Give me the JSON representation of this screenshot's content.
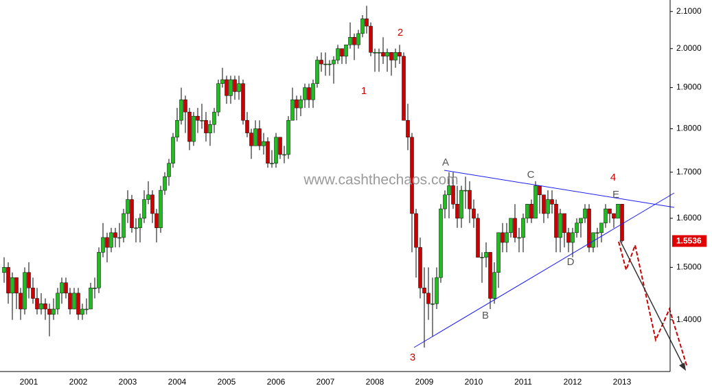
{
  "chart_data": {
    "type": "candlestick",
    "log_scale": true,
    "up_color": "#22bb22",
    "down_color": "#cc0000",
    "ylim": [
      1.308,
      2.132
    ],
    "yticks": [
      {
        "value": 1.4,
        "label": "1.4000"
      },
      {
        "value": 1.5,
        "label": "1.5000"
      },
      {
        "value": 1.6,
        "label": "1.6000"
      },
      {
        "value": 1.7,
        "label": "1.7000"
      },
      {
        "value": 1.8,
        "label": "1.8000"
      },
      {
        "value": 1.9,
        "label": "1.9000"
      },
      {
        "value": 2.0,
        "label": "2.0000"
      },
      {
        "value": 2.1,
        "label": "2.1000"
      }
    ],
    "watermark": "www.cashthechaos.com",
    "annotations": [
      "1",
      "2",
      "3",
      "4",
      "A",
      "B",
      "C",
      "D",
      "E"
    ],
    "categories": [
      null,
      null,
      null,
      null,
      null,
      null,
      "2001",
      null,
      null,
      null,
      null,
      null,
      null,
      null,
      null,
      null,
      null,
      null,
      "2002",
      null,
      null,
      null,
      null,
      null,
      null,
      null,
      null,
      null,
      null,
      null,
      "2003",
      null,
      null,
      null,
      null,
      null,
      null,
      null,
      null,
      null,
      null,
      null,
      "2004",
      null,
      null,
      null,
      null,
      null,
      null,
      null,
      null,
      null,
      null,
      null,
      "2005",
      null,
      null,
      null,
      null,
      null,
      null,
      null,
      null,
      null,
      null,
      null,
      "2006",
      null,
      null,
      null,
      null,
      null,
      null,
      null,
      null,
      null,
      null,
      null,
      "2007",
      null,
      null,
      null,
      null,
      null,
      null,
      null,
      null,
      null,
      null,
      null,
      "2008",
      null,
      null,
      null,
      null,
      null,
      null,
      null,
      null,
      null,
      null,
      null,
      "2009",
      null,
      null,
      null,
      null,
      null,
      null,
      null,
      null,
      null,
      null,
      null,
      "2010",
      null,
      null,
      null,
      null,
      null,
      null,
      null,
      null,
      null,
      null,
      null,
      "2011",
      null,
      null,
      null,
      null,
      null,
      null,
      null,
      null,
      null,
      null,
      null,
      "2012",
      null,
      null,
      null,
      null,
      null,
      null,
      null,
      null,
      null,
      null,
      null,
      "2013"
    ],
    "open": [
      1.49,
      1.5,
      1.45,
      1.48,
      1.45,
      1.42,
      1.49,
      1.46,
      1.44,
      1.42,
      1.43,
      1.42,
      1.41,
      1.42,
      1.45,
      1.47,
      1.45,
      1.42,
      1.45,
      1.41,
      1.42,
      1.42,
      1.46,
      1.46,
      1.53,
      1.56,
      1.54,
      1.57,
      1.56,
      1.56,
      1.61,
      1.64,
      1.58,
      1.58,
      1.6,
      1.64,
      1.65,
      1.61,
      1.58,
      1.66,
      1.69,
      1.72,
      1.78,
      1.82,
      1.87,
      1.84,
      1.77,
      1.83,
      1.82,
      1.82,
      1.79,
      1.81,
      1.84,
      1.91,
      1.92,
      1.88,
      1.92,
      1.89,
      1.91,
      1.82,
      1.79,
      1.76,
      1.8,
      1.76,
      1.77,
      1.72,
      1.72,
      1.78,
      1.74,
      1.74,
      1.82,
      1.87,
      1.85,
      1.87,
      1.9,
      1.87,
      1.91,
      1.97,
      1.96,
      1.96,
      1.96,
      1.97,
      2.0,
      1.98,
      2.01,
      2.03,
      2.01,
      2.04,
      2.08,
      2.06,
      1.99,
      1.99,
      1.99,
      1.98,
      1.99,
      1.97,
      1.99,
      1.98,
      1.82,
      1.78,
      1.61,
      1.54,
      1.46,
      1.45,
      1.43,
      1.43,
      1.48,
      1.62,
      1.65,
      1.67,
      1.63,
      1.6,
      1.66,
      1.66,
      1.62,
      1.6,
      1.52,
      1.52,
      1.53,
      1.44,
      1.49,
      1.57,
      1.55,
      1.57,
      1.6,
      1.56,
      1.56,
      1.6,
      1.63,
      1.6,
      1.67,
      1.65,
      1.61,
      1.64,
      1.63,
      1.56,
      1.61,
      1.57,
      1.55,
      1.57,
      1.59,
      1.6,
      1.62,
      1.54,
      1.57,
      1.57,
      1.59,
      1.62,
      1.61,
      1.6,
      1.63
    ],
    "high": [
      1.52,
      1.51,
      1.49,
      1.48,
      1.46,
      1.5,
      1.51,
      1.48,
      1.46,
      1.45,
      1.44,
      1.43,
      1.44,
      1.46,
      1.48,
      1.48,
      1.46,
      1.46,
      1.46,
      1.43,
      1.44,
      1.47,
      1.48,
      1.54,
      1.59,
      1.57,
      1.58,
      1.58,
      1.59,
      1.62,
      1.66,
      1.65,
      1.6,
      1.61,
      1.66,
      1.68,
      1.66,
      1.62,
      1.67,
      1.7,
      1.73,
      1.79,
      1.85,
      1.9,
      1.88,
      1.85,
      1.84,
      1.85,
      1.86,
      1.84,
      1.82,
      1.85,
      1.92,
      1.95,
      1.93,
      1.93,
      1.93,
      1.93,
      1.92,
      1.84,
      1.8,
      1.82,
      1.82,
      1.79,
      1.78,
      1.75,
      1.79,
      1.78,
      1.76,
      1.83,
      1.9,
      1.88,
      1.88,
      1.91,
      1.91,
      1.92,
      1.98,
      1.99,
      1.99,
      1.97,
      1.98,
      2.01,
      2.0,
      2.01,
      2.07,
      2.04,
      2.05,
      2.09,
      2.116,
      2.07,
      2.0,
      2.0,
      2.03,
      2.0,
      1.99,
      2.0,
      2.01,
      1.99,
      1.86,
      1.79,
      1.62,
      1.56,
      1.5,
      1.5,
      1.48,
      1.5,
      1.63,
      1.66,
      1.7,
      1.7,
      1.67,
      1.67,
      1.69,
      1.68,
      1.64,
      1.61,
      1.53,
      1.55,
      1.53,
      1.51,
      1.57,
      1.59,
      1.59,
      1.6,
      1.63,
      1.58,
      1.61,
      1.63,
      1.64,
      1.68,
      1.67,
      1.65,
      1.66,
      1.66,
      1.64,
      1.62,
      1.61,
      1.58,
      1.58,
      1.6,
      1.6,
      1.63,
      1.63,
      1.57,
      1.58,
      1.59,
      1.63,
      1.62,
      1.61,
      1.63,
      1.63
    ],
    "low": [
      1.47,
      1.43,
      1.4,
      1.42,
      1.4,
      1.41,
      1.44,
      1.43,
      1.41,
      1.41,
      1.4,
      1.37,
      1.4,
      1.41,
      1.43,
      1.44,
      1.41,
      1.42,
      1.4,
      1.4,
      1.41,
      1.42,
      1.44,
      1.45,
      1.52,
      1.51,
      1.53,
      1.54,
      1.54,
      1.55,
      1.59,
      1.57,
      1.55,
      1.55,
      1.59,
      1.63,
      1.59,
      1.55,
      1.57,
      1.65,
      1.67,
      1.71,
      1.77,
      1.81,
      1.79,
      1.75,
      1.76,
      1.79,
      1.8,
      1.77,
      1.76,
      1.79,
      1.83,
      1.9,
      1.86,
      1.86,
      1.87,
      1.87,
      1.81,
      1.78,
      1.73,
      1.76,
      1.75,
      1.74,
      1.71,
      1.71,
      1.71,
      1.73,
      1.72,
      1.73,
      1.82,
      1.82,
      1.83,
      1.85,
      1.85,
      1.85,
      1.9,
      1.94,
      1.93,
      1.93,
      1.91,
      1.96,
      1.96,
      1.96,
      2.0,
      1.97,
      2.0,
      2.03,
      2.04,
      1.98,
      1.94,
      1.94,
      1.96,
      1.94,
      1.93,
      1.95,
      1.96,
      1.82,
      1.75,
      1.53,
      1.48,
      1.44,
      1.35,
      1.4,
      1.37,
      1.42,
      1.47,
      1.6,
      1.6,
      1.62,
      1.58,
      1.58,
      1.62,
      1.59,
      1.58,
      1.52,
      1.47,
      1.5,
      1.42,
      1.43,
      1.46,
      1.53,
      1.53,
      1.56,
      1.55,
      1.53,
      1.53,
      1.59,
      1.59,
      1.6,
      1.61,
      1.59,
      1.6,
      1.61,
      1.53,
      1.53,
      1.54,
      1.53,
      1.52,
      1.56,
      1.56,
      1.59,
      1.53,
      1.53,
      1.54,
      1.55,
      1.58,
      1.59,
      1.58,
      1.6,
      1.55
    ],
    "close": [
      1.5,
      1.45,
      1.48,
      1.45,
      1.42,
      1.49,
      1.46,
      1.44,
      1.42,
      1.43,
      1.42,
      1.41,
      1.42,
      1.45,
      1.47,
      1.45,
      1.42,
      1.45,
      1.41,
      1.42,
      1.42,
      1.46,
      1.46,
      1.53,
      1.56,
      1.54,
      1.57,
      1.56,
      1.56,
      1.61,
      1.64,
      1.58,
      1.58,
      1.6,
      1.64,
      1.65,
      1.61,
      1.58,
      1.66,
      1.69,
      1.72,
      1.78,
      1.82,
      1.87,
      1.84,
      1.77,
      1.83,
      1.82,
      1.82,
      1.79,
      1.81,
      1.84,
      1.91,
      1.92,
      1.88,
      1.92,
      1.89,
      1.91,
      1.82,
      1.79,
      1.76,
      1.8,
      1.76,
      1.77,
      1.72,
      1.72,
      1.78,
      1.74,
      1.74,
      1.82,
      1.87,
      1.85,
      1.87,
      1.9,
      1.87,
      1.91,
      1.97,
      1.96,
      1.96,
      1.96,
      1.97,
      2.0,
      1.98,
      2.01,
      2.03,
      2.01,
      2.04,
      2.08,
      2.06,
      1.99,
      1.99,
      1.99,
      1.98,
      1.99,
      1.97,
      1.99,
      1.98,
      1.82,
      1.78,
      1.61,
      1.54,
      1.46,
      1.45,
      1.43,
      1.43,
      1.48,
      1.62,
      1.65,
      1.67,
      1.63,
      1.6,
      1.66,
      1.66,
      1.62,
      1.6,
      1.52,
      1.52,
      1.53,
      1.44,
      1.49,
      1.57,
      1.55,
      1.57,
      1.6,
      1.56,
      1.56,
      1.6,
      1.63,
      1.6,
      1.67,
      1.65,
      1.61,
      1.64,
      1.63,
      1.56,
      1.61,
      1.57,
      1.55,
      1.57,
      1.59,
      1.6,
      1.62,
      1.54,
      1.57,
      1.57,
      1.59,
      1.62,
      1.61,
      1.6,
      1.63,
      1.5536
    ]
  }
}
